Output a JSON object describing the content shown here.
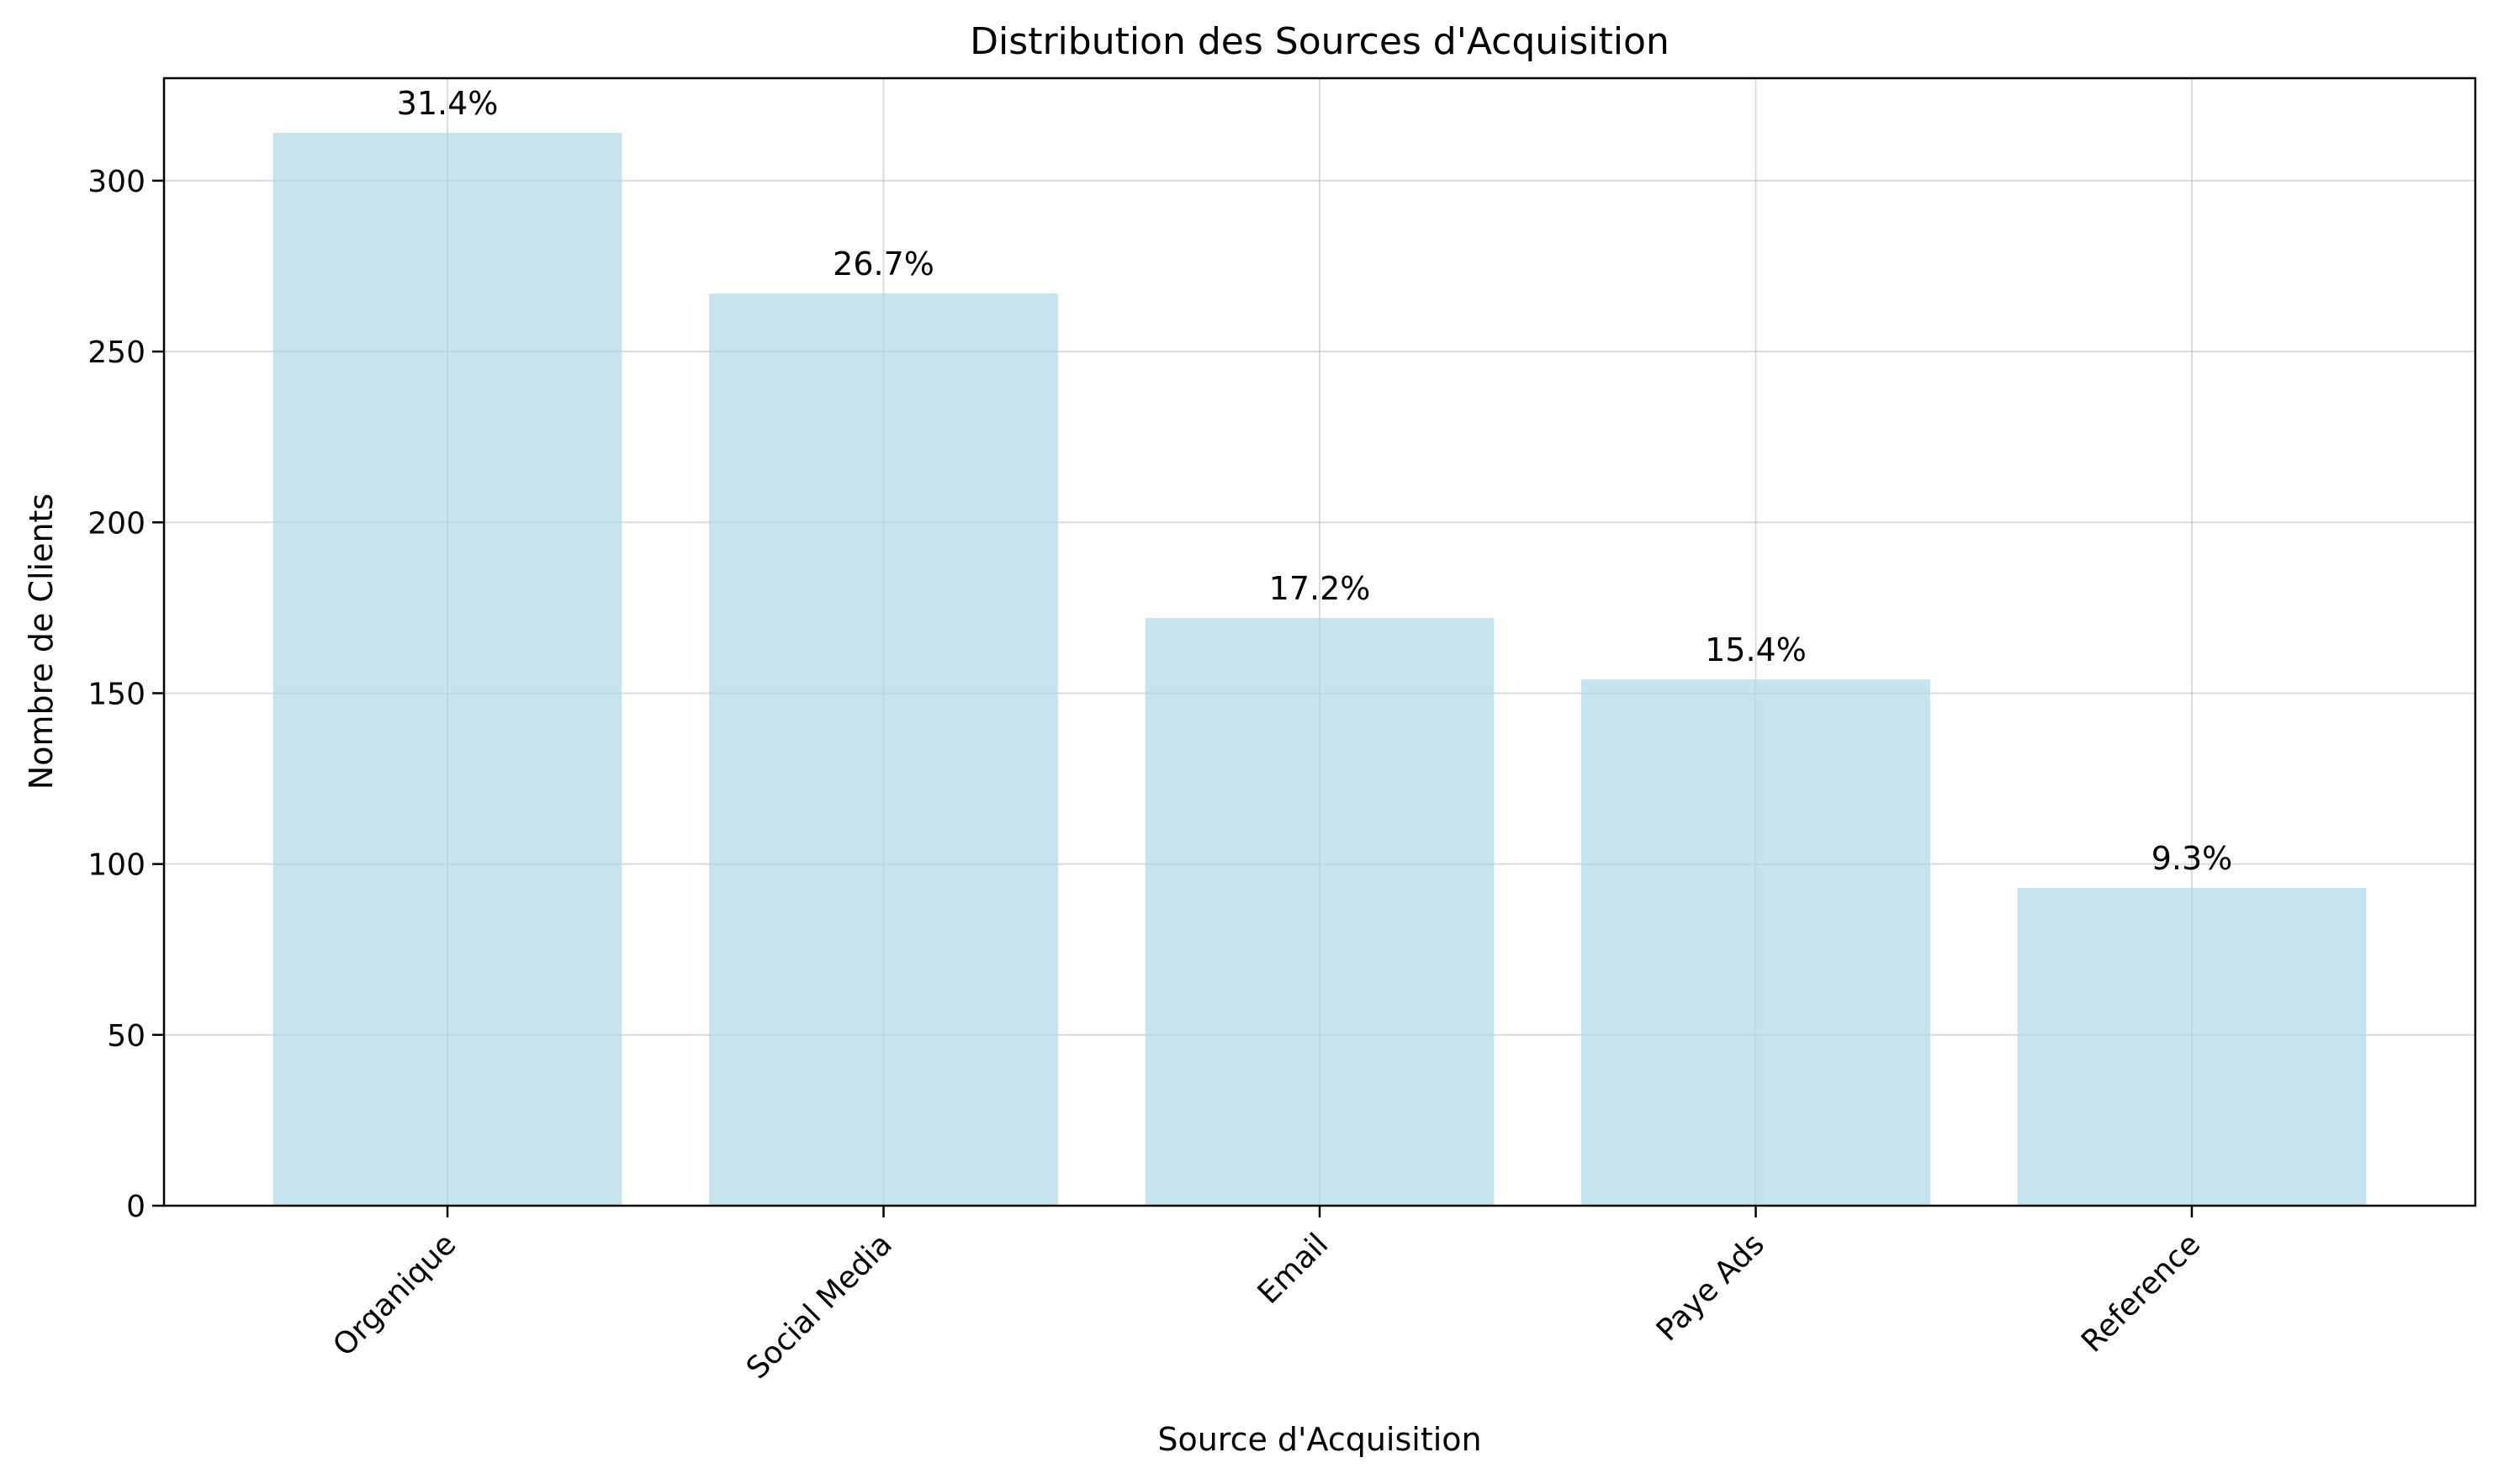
{
  "chart_data": {
    "type": "bar",
    "title": "Distribution des Sources d'Acquisition",
    "xlabel": "Source d'Acquisition",
    "ylabel": "Nombre de Clients",
    "categories": [
      "Organique",
      "Social Media",
      "Email",
      "Paye Ads",
      "Reference"
    ],
    "values": [
      314,
      267,
      172,
      154,
      93
    ],
    "data_labels": [
      "31.4%",
      "26.7%",
      "17.2%",
      "15.4%",
      "9.3%"
    ],
    "ylim": [
      0,
      330
    ],
    "yticks": [
      0,
      50,
      100,
      150,
      200,
      250,
      300
    ],
    "grid": true,
    "bar_color": "#add8e6",
    "x_tick_rotation_deg": -45
  }
}
